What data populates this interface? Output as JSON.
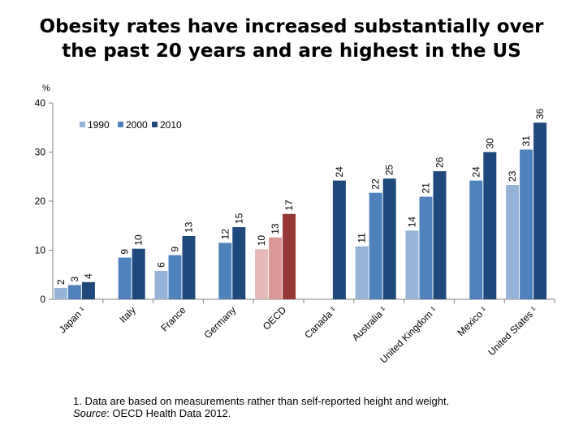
{
  "title_line1": "Obesity rates have increased substantially over",
  "title_line2": "the past 20 years and are highest in the US",
  "footnote": {
    "line1": "1. Data are based on measurements rather than self-reported height and weight.",
    "source_label": "Source",
    "source_text": ": OECD Health Data 2012."
  },
  "chart_data": {
    "type": "bar",
    "ylabel": "%",
    "xlabel": "",
    "ylim": [
      0,
      40
    ],
    "yticks": [
      0,
      10,
      20,
      30,
      40
    ],
    "grid": false,
    "legend_position": "top-left",
    "categories": [
      "Japan ¹",
      "Italy",
      "France",
      "Germany",
      "OECD",
      "Canada ¹",
      "Australia ¹",
      "United Kingdom ¹",
      "Mexico ¹",
      "United States ¹"
    ],
    "series": [
      {
        "name": "1990",
        "color": "#95b3d7",
        "values": [
          2,
          null,
          6,
          null,
          10,
          null,
          11,
          14,
          null,
          23
        ]
      },
      {
        "name": "2000",
        "color": "#4f81bd",
        "values": [
          3,
          9,
          9,
          12,
          13,
          null,
          22,
          21,
          24,
          31
        ]
      },
      {
        "name": "2010",
        "color": "#1f497d",
        "values": [
          4,
          10,
          13,
          15,
          17,
          24,
          25,
          26,
          30,
          36
        ]
      }
    ],
    "bar_values": [
      [
        2.3,
        null,
        5.8,
        null,
        10.2,
        null,
        10.8,
        14.0,
        null,
        23.3
      ],
      [
        2.9,
        8.5,
        9.0,
        11.5,
        12.6,
        null,
        21.7,
        20.9,
        24.2,
        30.5
      ],
      [
        3.5,
        10.3,
        12.9,
        14.7,
        17.4,
        24.2,
        24.6,
        26.1,
        30.0,
        36.0
      ]
    ],
    "highlight": {
      "category": "OECD",
      "colors": [
        "#e6b9b8",
        "#d99694",
        "#953735"
      ]
    }
  }
}
